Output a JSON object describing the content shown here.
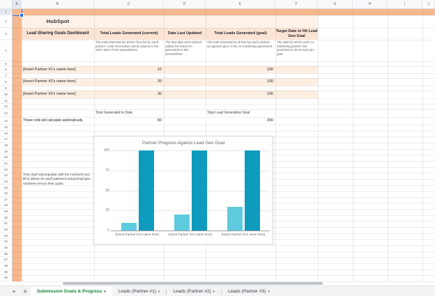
{
  "grid": {
    "column_letters": [
      "A",
      "B",
      "C",
      "D",
      "E",
      "F",
      "G",
      "H",
      "I",
      "J"
    ],
    "row_numbers": [
      1,
      2,
      3,
      4,
      5,
      6,
      7,
      8,
      9,
      10,
      11,
      12,
      13,
      14,
      15,
      16,
      17,
      18,
      19,
      20,
      21,
      22,
      23,
      24,
      25,
      26,
      27,
      28,
      29,
      30,
      31,
      32,
      33,
      34,
      35,
      36,
      37,
      38,
      39,
      40
    ]
  },
  "dashboard": {
    "logo_text": "HubSpot",
    "title": "Lead Sharing Goals Dashboard",
    "columns": [
      {
        "header": "Total Leads Generated (current)",
        "description": "The total submissions driven thus far by each partner. Lead information will be placed in the other tabs of this spreadsheet."
      },
      {
        "header": "Date Last Updated",
        "description": "The last date each partner added the leads it's generated to this spreadsheet."
      },
      {
        "header": "Total Leads Generated (goal)",
        "description": "The total submissions driven by each partner, as agreed upon in the co-marketing agreement"
      },
      {
        "header": "Target Date to Hit Lead Gen Goal",
        "description": "The date by which each co-marketing partner has promised to hit its lead gen goal"
      }
    ],
    "partners": [
      {
        "name": "[Insert Partner #1's name here]",
        "current": "10",
        "goal": "100"
      },
      {
        "name": "[Insert Partner #2's name here]",
        "current": "20",
        "goal": "100"
      },
      {
        "name": "[Insert Partner #3's name here]",
        "current": "30",
        "goal": "100"
      }
    ],
    "totals": {
      "current_label": "Total Generated to Date",
      "current_value": "60",
      "goal_label": "Total Lead Generation Goal",
      "goal_value": "300"
    },
    "auto_note": "These cells will calculate automatically.",
    "chart_note": "This chart will populate with the numbers you fill in above for each partner's actual lead gen numbers versus their goals."
  },
  "chart_data": {
    "type": "bar",
    "title": "Partner Progress Against Lead Gen Goal",
    "categories": [
      "[Insert Partner #1's name here]",
      "[Insert Partner #2's name here]",
      "[Insert Partner #3's name here]"
    ],
    "series": [
      {
        "name": "Total Leads Generated (current)",
        "color": "#5fcbdf",
        "values": [
          10,
          20,
          30
        ]
      },
      {
        "name": "Total Leads Generated (goal)",
        "color": "#0f9bbd",
        "values": [
          100,
          100,
          100
        ]
      }
    ],
    "xlabel": "",
    "ylabel": "",
    "ylim": [
      0,
      100
    ],
    "yticks": [
      0,
      25,
      50,
      75,
      100
    ],
    "grid": true,
    "legend": "none"
  },
  "tabs": {
    "active": "Submission Goals & Progress",
    "others": [
      "Leads (Partner #1)",
      "Leads (Partner #2)",
      "Leads (Partner #3)"
    ]
  },
  "icons": {
    "plus": "+",
    "menu": "≡",
    "caret": "▾"
  },
  "colors": {
    "band_strong": "#f8b88d",
    "band_light": "#fdf2ea",
    "band_header": "#fce4d4",
    "band_partner_row": "#fdeee2",
    "bar_current": "#5fcbdf",
    "bar_goal": "#0f9bbd",
    "active_tab_green": "#188038",
    "selection_blue": "#1a73e8"
  }
}
